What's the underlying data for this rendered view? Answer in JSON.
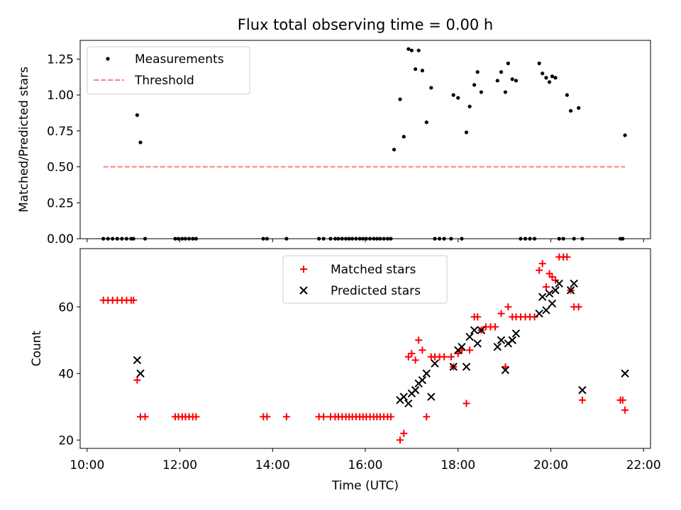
{
  "chart_data": [
    {
      "type": "scatter",
      "title": "Flux total observing time = 0.00 h",
      "xlabel": "",
      "ylabel": "Matched/Predicted stars",
      "xlim_hours": [
        9.85,
        22.15
      ],
      "ylim": [
        0,
        1.38
      ],
      "yticks": [
        0.0,
        0.25,
        0.5,
        0.75,
        1.0,
        1.25
      ],
      "ytick_labels": [
        "0.00",
        "0.25",
        "0.50",
        "0.75",
        "1.00",
        "1.25"
      ],
      "legend_position": "upper-left",
      "series": [
        {
          "name": "Measurements",
          "marker": "dot",
          "color": "#000000",
          "x_hours": [
            10.35,
            10.45,
            10.55,
            10.65,
            10.75,
            10.85,
            10.95,
            11.0,
            11.08,
            11.15,
            11.25,
            11.9,
            11.97,
            12.05,
            12.12,
            12.2,
            12.28,
            12.35,
            13.8,
            13.88,
            14.3,
            15.0,
            15.1,
            15.25,
            15.35,
            15.42,
            15.5,
            15.58,
            15.65,
            15.72,
            15.8,
            15.88,
            15.95,
            16.02,
            16.1,
            16.18,
            16.25,
            16.32,
            16.4,
            16.48,
            16.55,
            16.62,
            16.75,
            16.83,
            16.93,
            17.0,
            17.08,
            17.15,
            17.23,
            17.32,
            17.42,
            17.5,
            17.6,
            17.7,
            17.85,
            17.9,
            18.0,
            18.08,
            18.18,
            18.25,
            18.35,
            18.42,
            18.5,
            18.85,
            18.93,
            19.02,
            19.08,
            19.17,
            19.25,
            19.35,
            19.45,
            19.55,
            19.65,
            19.75,
            19.82,
            19.9,
            19.97,
            20.03,
            20.1,
            20.18,
            20.27,
            20.35,
            20.43,
            20.5,
            20.6,
            20.68,
            21.5,
            21.55,
            21.6
          ],
          "y": [
            0,
            0,
            0,
            0,
            0,
            0,
            0,
            0,
            0.86,
            0.67,
            0,
            0,
            0,
            0,
            0,
            0,
            0,
            0,
            0,
            0,
            0,
            0,
            0,
            0,
            0,
            0,
            0,
            0,
            0,
            0,
            0,
            0,
            0,
            0,
            0,
            0,
            0,
            0,
            0,
            0,
            0,
            0.62,
            0.97,
            0.71,
            1.32,
            1.31,
            1.18,
            1.31,
            1.17,
            0.81,
            1.05,
            0,
            0,
            0,
            0,
            1.0,
            0.98,
            0,
            0.74,
            0.92,
            1.07,
            1.16,
            1.02,
            1.1,
            1.16,
            1.02,
            1.22,
            1.11,
            1.1,
            0,
            0,
            0,
            0,
            1.22,
            1.15,
            1.12,
            1.09,
            1.13,
            1.12,
            0,
            0,
            1.0,
            0.89,
            0,
            0.91,
            0,
            0,
            0,
            0.72
          ]
        },
        {
          "name": "Threshold",
          "style": "dashed",
          "color": "#ff7f7f",
          "x_hours": [
            10.35,
            21.6
          ],
          "y": [
            0.5,
            0.5
          ]
        }
      ]
    },
    {
      "type": "scatter",
      "title": "",
      "xlabel": "Time (UTC)",
      "ylabel": "Count",
      "xlim_hours": [
        9.85,
        22.15
      ],
      "ylim": [
        17.5,
        77.5
      ],
      "yticks": [
        20,
        40,
        60
      ],
      "ytick_labels": [
        "20",
        "40",
        "60"
      ],
      "xticks_hours": [
        10,
        12,
        14,
        16,
        18,
        20,
        22
      ],
      "xtick_labels": [
        "10:00",
        "12:00",
        "14:00",
        "16:00",
        "18:00",
        "20:00",
        "22:00"
      ],
      "legend_position": "upper-center",
      "series": [
        {
          "name": "Matched stars",
          "marker": "plus",
          "color": "#ff0000",
          "x_hours": [
            10.35,
            10.45,
            10.55,
            10.65,
            10.75,
            10.85,
            10.95,
            11.0,
            11.08,
            11.15,
            11.25,
            11.9,
            11.97,
            12.05,
            12.12,
            12.2,
            12.28,
            12.35,
            13.8,
            13.88,
            14.3,
            15.0,
            15.1,
            15.25,
            15.35,
            15.42,
            15.5,
            15.58,
            15.65,
            15.72,
            15.8,
            15.88,
            15.95,
            16.02,
            16.1,
            16.18,
            16.25,
            16.32,
            16.4,
            16.48,
            16.55,
            16.75,
            16.83,
            16.93,
            17.0,
            17.08,
            17.15,
            17.23,
            17.32,
            17.42,
            17.5,
            17.6,
            17.7,
            17.85,
            17.9,
            18.0,
            18.08,
            18.18,
            18.25,
            18.35,
            18.42,
            18.5,
            18.6,
            18.7,
            18.8,
            18.93,
            19.02,
            19.08,
            19.17,
            19.25,
            19.35,
            19.45,
            19.55,
            19.65,
            19.75,
            19.82,
            19.9,
            19.97,
            20.03,
            20.1,
            20.18,
            20.27,
            20.35,
            20.43,
            20.5,
            20.6,
            20.68,
            21.5,
            21.55,
            21.6
          ],
          "y": [
            62,
            62,
            62,
            62,
            62,
            62,
            62,
            62,
            38,
            27,
            27,
            27,
            27,
            27,
            27,
            27,
            27,
            27,
            27,
            27,
            27,
            27,
            27,
            27,
            27,
            27,
            27,
            27,
            27,
            27,
            27,
            27,
            27,
            27,
            27,
            27,
            27,
            27,
            27,
            27,
            27,
            20,
            22,
            45,
            46,
            44,
            50,
            47,
            27,
            45,
            45,
            45,
            45,
            45,
            42,
            46,
            47,
            31,
            47,
            57,
            57,
            53,
            54,
            54,
            54,
            58,
            42,
            60,
            57,
            57,
            57,
            57,
            57,
            57,
            71,
            73,
            66,
            70,
            69,
            68,
            75,
            75,
            75,
            65,
            60,
            60,
            32,
            32,
            32,
            29
          ]
        },
        {
          "name": "Predicted stars",
          "marker": "x",
          "color": "#000000",
          "x_hours": [
            11.08,
            11.15,
            16.75,
            16.83,
            16.93,
            17.0,
            17.08,
            17.15,
            17.23,
            17.32,
            17.42,
            17.5,
            17.9,
            18.0,
            18.08,
            18.18,
            18.25,
            18.35,
            18.42,
            18.5,
            18.85,
            18.93,
            19.02,
            19.08,
            19.17,
            19.25,
            19.75,
            19.82,
            19.9,
            19.97,
            20.03,
            20.1,
            20.18,
            20.43,
            20.5,
            20.68,
            21.6
          ],
          "y": [
            44,
            40,
            32,
            33,
            31,
            34,
            35,
            37,
            38,
            40,
            33,
            43,
            42,
            47,
            48,
            42,
            51,
            53,
            49,
            53,
            48,
            50,
            41,
            49,
            50,
            52,
            58,
            63,
            59,
            64,
            61,
            65,
            67,
            65,
            67,
            35,
            40
          ]
        }
      ]
    }
  ]
}
